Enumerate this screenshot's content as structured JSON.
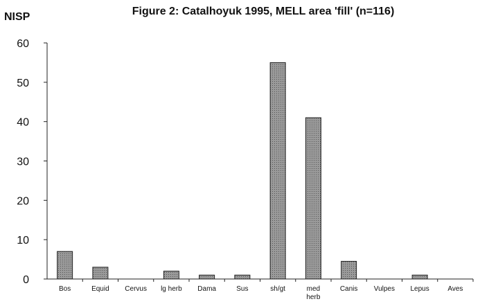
{
  "chart_data": {
    "type": "bar",
    "title": "Figure 2: Catalhoyuk 1995, MELL area 'fill' (n=116)",
    "xlabel": "",
    "ylabel": "NISP",
    "ylim": [
      0,
      60
    ],
    "yticks": [
      0,
      10,
      20,
      30,
      40,
      50,
      60
    ],
    "categories": [
      "Bos",
      "Equid",
      "Cervus",
      "lg herb",
      "Dama",
      "Sus",
      "sh/gt",
      "med herb",
      "Canis",
      "Vulpes",
      "Lepus",
      "Aves"
    ],
    "values": [
      7,
      3,
      0,
      2,
      1,
      1,
      55,
      41,
      4.5,
      0,
      1,
      0
    ],
    "bar_color": "#9a9a9a"
  }
}
